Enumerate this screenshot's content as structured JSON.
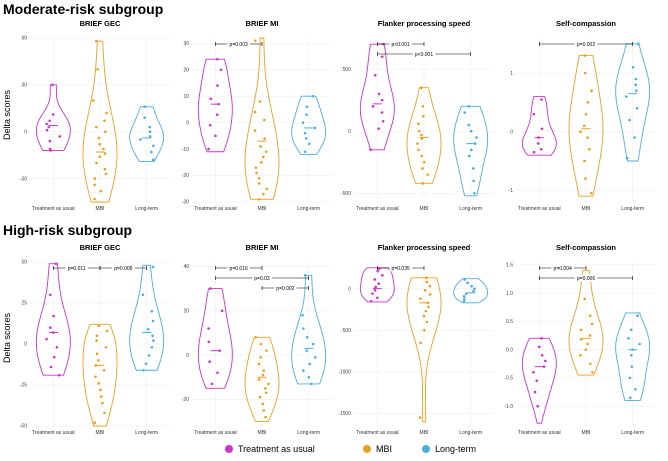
{
  "sections": [
    {
      "title": "Moderate-risk subgroup",
      "ylabel": "Delta scores"
    },
    {
      "title": "High-risk subgroup",
      "ylabel": "Delta scores"
    }
  ],
  "legend": [
    {
      "label": "Treatment as usual",
      "color": "#cc33cc"
    },
    {
      "label": "MBI",
      "color": "#e8a020"
    },
    {
      "label": "Long-term",
      "color": "#4aaee0"
    }
  ],
  "colors": {
    "treatment": "#cc33cc",
    "mbi": "#e8a020",
    "longterm": "#4aaee0"
  },
  "chart_data": [
    {
      "type": "violin",
      "section": "Moderate-risk subgroup",
      "title": "BRIEF GEC",
      "categories": [
        "Treatment as usual",
        "MBI",
        "Long-term"
      ],
      "ylim": [
        -45,
        60
      ],
      "yticks": [
        "60",
        "30",
        "0",
        "-30"
      ],
      "ytick_values": [
        60,
        30,
        0,
        -30
      ],
      "series": [
        {
          "name": "Treatment as usual",
          "range": [
            -12,
            30
          ],
          "median": 4,
          "values": [
            30,
            11,
            7,
            5,
            3,
            1,
            -3,
            -6,
            -11,
            -12
          ]
        },
        {
          "name": "MBI",
          "range": [
            -45,
            58
          ],
          "median": -13,
          "values": [
            58,
            40,
            20,
            12,
            7,
            3,
            0,
            -4,
            -8,
            -11,
            -14,
            -16,
            -20,
            -24,
            -27,
            -30,
            -34,
            -38,
            -43
          ]
        },
        {
          "name": "Long-term",
          "range": [
            -19,
            16
          ],
          "median": -4,
          "values": [
            16,
            9,
            3,
            0,
            -3,
            -5,
            -9,
            -13,
            -18
          ]
        }
      ],
      "annotations": []
    },
    {
      "type": "violin",
      "section": "Moderate-risk subgroup",
      "title": "BRIEF MI",
      "categories": [
        "Treatment as usual",
        "MBI",
        "Long-term"
      ],
      "ylim": [
        -30,
        32
      ],
      "yticks": [
        "30",
        "20",
        "10",
        "0",
        "-10",
        "-20",
        "-30"
      ],
      "ytick_values": [
        30,
        20,
        10,
        0,
        -10,
        -20,
        -30
      ],
      "series": [
        {
          "name": "Treatment as usual",
          "range": [
            -11,
            24
          ],
          "median": 7,
          "values": [
            24,
            20,
            14,
            9,
            7,
            3,
            -1,
            -5,
            -10
          ]
        },
        {
          "name": "MBI",
          "range": [
            -29,
            32
          ],
          "median": -7,
          "values": [
            31,
            8,
            4,
            1,
            -3,
            -6,
            -9,
            -11,
            -13,
            -15,
            -17,
            -19,
            -21,
            -23,
            -25,
            -27,
            -29
          ]
        },
        {
          "name": "Long-term",
          "range": [
            -12,
            10
          ],
          "median": -2,
          "values": [
            10,
            6,
            3,
            0,
            -2,
            -4,
            -6,
            -8,
            -11
          ]
        }
      ],
      "annotations": [
        {
          "label": "p=0.003",
          "from": 0,
          "to": 1,
          "level": 0
        }
      ]
    },
    {
      "type": "violin",
      "section": "Moderate-risk subgroup",
      "title": "Flanker processing speed",
      "categories": [
        "Treatment as usual",
        "MBI",
        "Long-term"
      ],
      "ylim": [
        -570,
        750
      ],
      "yticks": [
        "500",
        "0",
        "-500"
      ],
      "ytick_values": [
        500,
        0,
        -500
      ],
      "series": [
        {
          "name": "Treatment as usual",
          "range": [
            -150,
            700
          ],
          "median": 220,
          "values": [
            700,
            600,
            450,
            300,
            250,
            200,
            150,
            80,
            20,
            -150
          ]
        },
        {
          "name": "MBI",
          "range": [
            -420,
            350
          ],
          "median": -50,
          "values": [
            350,
            200,
            120,
            60,
            0,
            -30,
            -60,
            -100,
            -150,
            -200,
            -250,
            -300,
            -350,
            -420
          ]
        },
        {
          "name": "Long-term",
          "range": [
            -520,
            200
          ],
          "median": -100,
          "values": [
            200,
            150,
            50,
            0,
            -50,
            -100,
            -150,
            -200,
            -300,
            -400,
            -500
          ]
        }
      ],
      "annotations": [
        {
          "label": "p<0.001",
          "from": 0,
          "to": 1,
          "level": 0
        },
        {
          "label": "p<0.001",
          "from": 0,
          "to": 2,
          "level": 1
        }
      ]
    },
    {
      "type": "violin",
      "section": "Moderate-risk subgroup",
      "title": "Self-compassion",
      "categories": [
        "Treatment as usual",
        "MBI",
        "Long-term"
      ],
      "ylim": [
        -1.2,
        1.6
      ],
      "yticks": [
        "1",
        "0",
        "-1"
      ],
      "ytick_values": [
        1,
        0,
        -1
      ],
      "series": [
        {
          "name": "Treatment as usual",
          "range": [
            -0.4,
            0.6
          ],
          "median": -0.1,
          "values": [
            0.55,
            0.3,
            0.05,
            -0.1,
            -0.2,
            -0.3,
            -0.35
          ]
        },
        {
          "name": "MBI",
          "range": [
            -1.1,
            1.3
          ],
          "median": 0.05,
          "values": [
            1.3,
            1.0,
            0.7,
            0.5,
            0.3,
            0.1,
            0.0,
            -0.1,
            -0.3,
            -0.5,
            -0.8,
            -1.05
          ]
        },
        {
          "name": "Long-term",
          "range": [
            -0.5,
            1.5
          ],
          "median": 0.65,
          "values": [
            1.5,
            1.1,
            0.9,
            0.8,
            0.7,
            0.6,
            0.4,
            0.2,
            -0.1,
            -0.45
          ]
        }
      ],
      "annotations": [
        {
          "label": "p=0.002",
          "from": 0,
          "to": 2,
          "level": 0
        }
      ]
    },
    {
      "type": "violin",
      "section": "High-risk subgroup",
      "title": "BRIEF GEC",
      "categories": [
        "Treatment as usual",
        "MBI",
        "Long-term"
      ],
      "ylim": [
        -50,
        50
      ],
      "yticks": [
        "50",
        "25",
        "0",
        "-25",
        "-50"
      ],
      "ytick_values": [
        50,
        25,
        0,
        -25,
        -50
      ],
      "series": [
        {
          "name": "Treatment as usual",
          "range": [
            -19,
            49
          ],
          "median": 7,
          "values": [
            49,
            30,
            17,
            10,
            7,
            3,
            -2,
            -8,
            -14,
            -19
          ]
        },
        {
          "name": "MBI",
          "range": [
            -50,
            12
          ],
          "median": -13,
          "values": [
            11,
            8,
            5,
            2,
            -2,
            -6,
            -10,
            -13,
            -16,
            -20,
            -24,
            -28,
            -32,
            -36,
            -42,
            -48
          ]
        },
        {
          "name": "Long-term",
          "range": [
            -16,
            48
          ],
          "median": 7,
          "values": [
            47,
            30,
            20,
            14,
            9,
            5,
            2,
            -2,
            -7,
            -12,
            -16
          ]
        }
      ],
      "annotations": [
        {
          "label": "p=0.011",
          "from": 0,
          "to": 1,
          "level": 0
        },
        {
          "label": "p=0.005",
          "from": 1,
          "to": 2,
          "level": 0
        }
      ]
    },
    {
      "type": "violin",
      "section": "High-risk subgroup",
      "title": "BRIEF MI",
      "categories": [
        "Treatment as usual",
        "MBI",
        "Long-term"
      ],
      "ylim": [
        -32,
        42
      ],
      "yticks": [
        "40",
        "20",
        "0",
        "-20"
      ],
      "ytick_values": [
        40,
        20,
        0,
        -20
      ],
      "series": [
        {
          "name": "Treatment as usual",
          "range": [
            -15,
            30
          ],
          "median": 2,
          "values": [
            30,
            20,
            12,
            6,
            2,
            -3,
            -8,
            -13
          ]
        },
        {
          "name": "MBI",
          "range": [
            -30,
            8
          ],
          "median": -10,
          "values": [
            8,
            5,
            2,
            -1,
            -4,
            -7,
            -9,
            -11,
            -13,
            -15,
            -17,
            -19,
            -22,
            -25,
            -28
          ]
        },
        {
          "name": "Long-term",
          "range": [
            -13,
            36
          ],
          "median": 3,
          "values": [
            36,
            18,
            12,
            8,
            5,
            2,
            -1,
            -4,
            -7,
            -10,
            -13
          ]
        }
      ],
      "annotations": [
        {
          "label": "p=0.016",
          "from": 0,
          "to": 1,
          "level": 0
        },
        {
          "label": "p=0.03",
          "from": 0,
          "to": 2,
          "level": 1
        },
        {
          "label": "p=0.002",
          "from": 1,
          "to": 2,
          "level": 2
        }
      ]
    },
    {
      "type": "violin",
      "section": "High-risk subgroup",
      "title": "Flanker processing speed",
      "categories": [
        "Treatment as usual",
        "MBI",
        "Long-term"
      ],
      "ylim": [
        -1650,
        320
      ],
      "yticks": [
        "0",
        "-500",
        "-1000",
        "-1500"
      ],
      "ytick_values": [
        0,
        -500,
        -1000,
        -1500
      ],
      "series": [
        {
          "name": "Treatment as usual",
          "range": [
            -160,
            250
          ],
          "median": 0,
          "values": [
            240,
            210,
            160,
            110,
            60,
            20,
            -20,
            -60,
            -110,
            -150
          ]
        },
        {
          "name": "MBI",
          "range": [
            -1600,
            130
          ],
          "median": -170,
          "values": [
            130,
            80,
            30,
            -20,
            -70,
            -120,
            -170,
            -220,
            -270,
            -330,
            -400,
            -500,
            -650,
            -1550
          ]
        },
        {
          "name": "Long-term",
          "range": [
            -170,
            120
          ],
          "median": -50,
          "values": [
            110,
            70,
            30,
            0,
            -30,
            -60,
            -90,
            -120,
            -150
          ]
        }
      ],
      "annotations": [
        {
          "label": "p=0.035",
          "from": 0,
          "to": 1,
          "level": 0
        }
      ]
    },
    {
      "type": "violin",
      "section": "High-risk subgroup",
      "title": "Self-compassion",
      "categories": [
        "Treatment as usual",
        "MBI",
        "Long-term"
      ],
      "ylim": [
        -1.35,
        1.55
      ],
      "yticks": [
        "1.5",
        "1.0",
        "0.5",
        "0.0",
        "-0.5",
        "-1.0"
      ],
      "ytick_values": [
        1.5,
        1.0,
        0.5,
        0.0,
        -0.5,
        -1.0
      ],
      "series": [
        {
          "name": "Treatment as usual",
          "range": [
            -1.3,
            0.2
          ],
          "median": -0.3,
          "values": [
            0.2,
            0.05,
            -0.1,
            -0.2,
            -0.3,
            -0.4,
            -0.55,
            -0.75,
            -1.0
          ]
        },
        {
          "name": "MBI",
          "range": [
            -0.45,
            1.4
          ],
          "median": 0.2,
          "values": [
            1.3,
            0.9,
            0.6,
            0.45,
            0.35,
            0.25,
            0.18,
            0.1,
            0.0,
            -0.1,
            -0.25,
            -0.4
          ]
        },
        {
          "name": "Long-term",
          "range": [
            -0.9,
            0.65
          ],
          "median": 0.0,
          "values": [
            0.6,
            0.35,
            0.2,
            0.1,
            0.0,
            -0.1,
            -0.3,
            -0.5,
            -0.7,
            -0.85
          ]
        }
      ],
      "annotations": [
        {
          "label": "p=0.004",
          "from": 0,
          "to": 1,
          "level": 0
        },
        {
          "label": "p=0.006",
          "from": 0,
          "to": 2,
          "level": 1
        }
      ]
    }
  ]
}
